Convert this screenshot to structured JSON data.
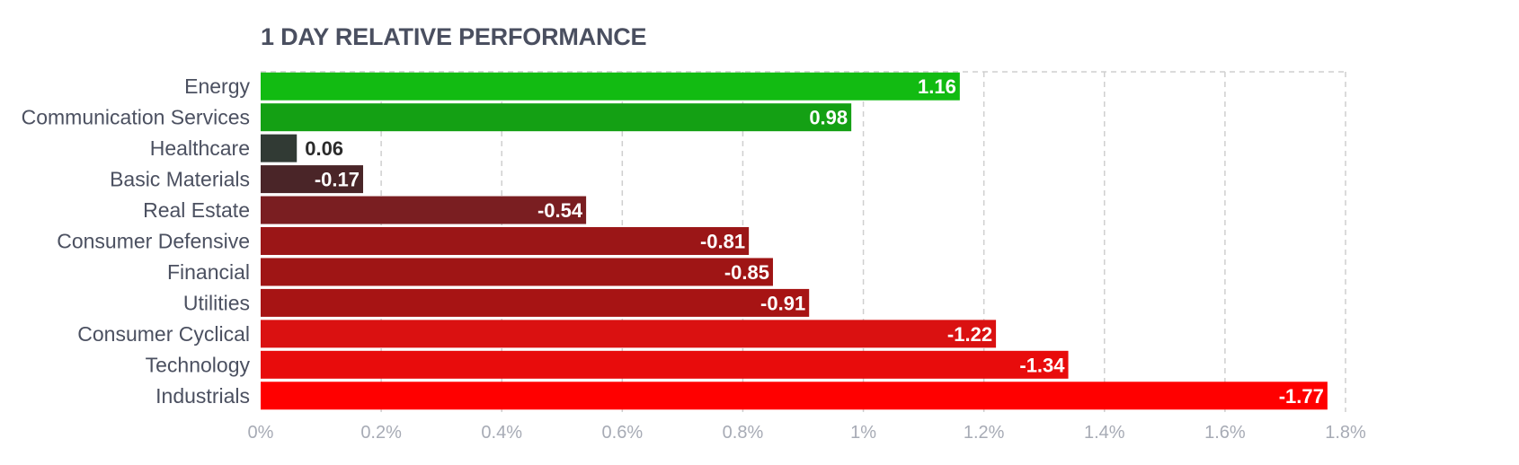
{
  "chart_data": {
    "type": "bar",
    "orientation": "horizontal",
    "title": "1 DAY RELATIVE PERFORMANCE",
    "categories": [
      "Energy",
      "Communication Services",
      "Healthcare",
      "Basic Materials",
      "Real Estate",
      "Consumer Defensive",
      "Financial",
      "Utilities",
      "Consumer Cyclical",
      "Technology",
      "Industrials"
    ],
    "values": [
      1.16,
      0.98,
      0.06,
      -0.17,
      -0.54,
      -0.81,
      -0.85,
      -0.91,
      -1.22,
      -1.34,
      -1.77
    ],
    "value_labels": [
      "1.16",
      "0.98",
      "0.06",
      "-0.17",
      "-0.54",
      "-0.81",
      "-0.85",
      "-0.91",
      "-1.22",
      "-1.34",
      "-1.77"
    ],
    "bar_colors": [
      "#12bb12",
      "#14a014",
      "#313a34",
      "#4a2528",
      "#7a1e21",
      "#9b1617",
      "#9f1515",
      "#a71414",
      "#da1111",
      "#e80c0c",
      "#ff0000"
    ],
    "x_ticks": [
      "0%",
      "0.2%",
      "0.4%",
      "0.6%",
      "0.8%",
      "1%",
      "1.2%",
      "1.4%",
      "1.6%",
      "1.8%"
    ],
    "xlim": [
      0,
      1.8
    ],
    "bar_length": "absolute value",
    "grid": true,
    "xlabel": "",
    "ylabel": ""
  }
}
